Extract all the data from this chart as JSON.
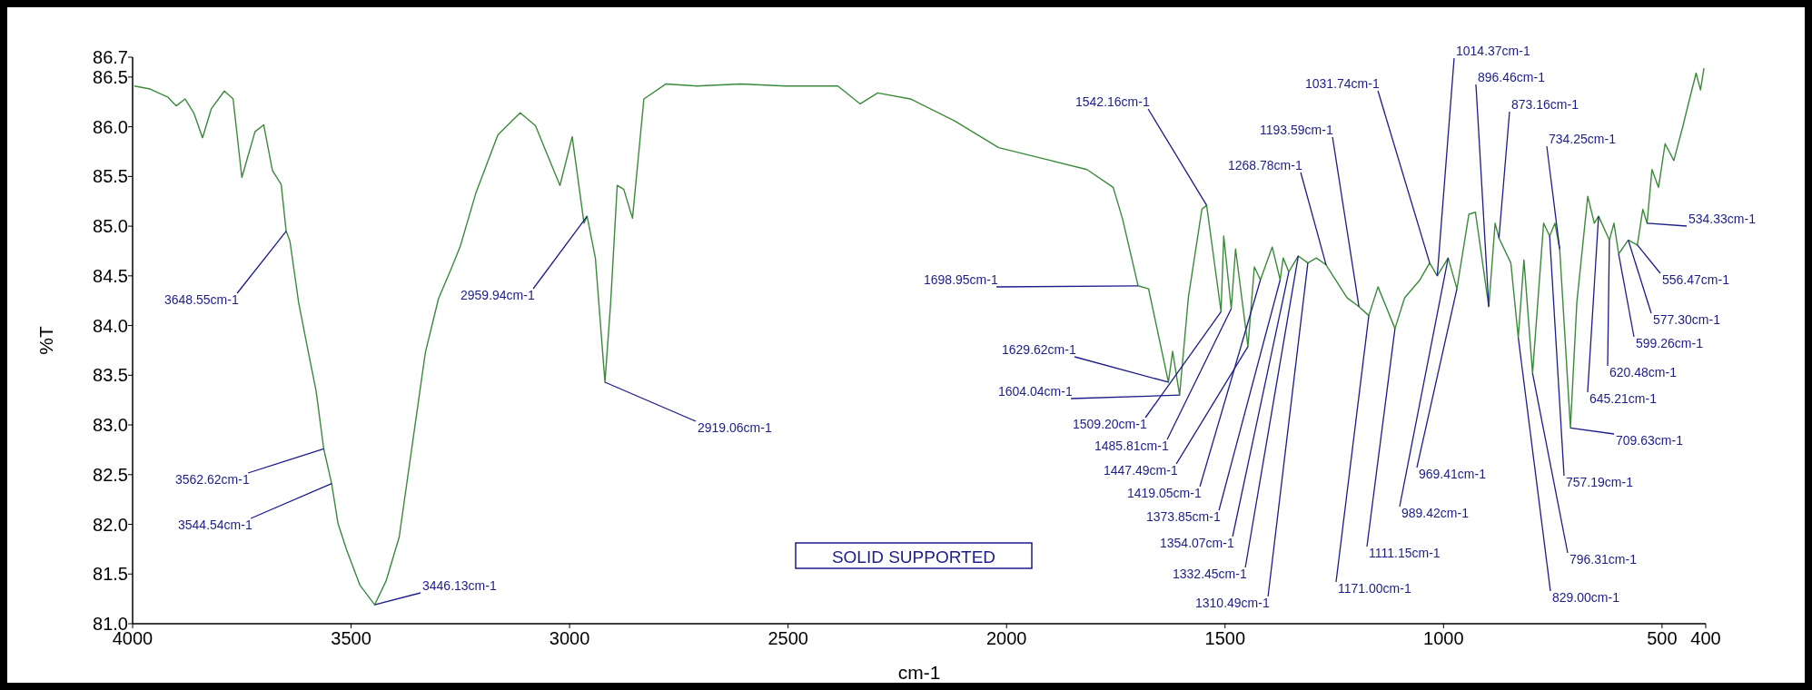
{
  "chart_data": {
    "type": "line",
    "xlabel": "cm-1",
    "ylabel": "%T",
    "xlim": [
      4000,
      400
    ],
    "xticks": [
      4000,
      3500,
      3000,
      2500,
      2000,
      1500,
      1000,
      500,
      400
    ],
    "ylim": [
      81.0,
      86.7
    ],
    "yticks": [
      {
        "value": 81.0,
        "label": "81.0"
      },
      {
        "value": 81.5,
        "label": "81.5"
      },
      {
        "value": 82.0,
        "label": "82.0"
      },
      {
        "value": 82.5,
        "label": "82.5"
      },
      {
        "value": 83.0,
        "label": "83.0"
      },
      {
        "value": 83.5,
        "label": "83.5"
      },
      {
        "value": 84.0,
        "label": "84.0"
      },
      {
        "value": 84.5,
        "label": "84.5"
      },
      {
        "value": 85.0,
        "label": "85.0"
      },
      {
        "value": 85.5,
        "label": "85.5"
      },
      {
        "value": 86.0,
        "label": "86.0"
      },
      {
        "value": 86.5,
        "label": "86.5"
      },
      {
        "value": 86.7,
        "label": "86.7"
      }
    ],
    "grid": false,
    "marker": "none",
    "line_style": "solid",
    "series": [
      {
        "color": "#3b8a3b",
        "x": [
          3996,
          3960,
          3920,
          3900,
          3880,
          3860,
          3840,
          3820,
          3790,
          3770,
          3750,
          3720,
          3700,
          3680,
          3660,
          3648.55,
          3640,
          3620,
          3600,
          3580,
          3562.62,
          3544.54,
          3530,
          3510,
          3480,
          3446.13,
          3420,
          3390,
          3360,
          3330,
          3300,
          3270,
          3250,
          3214,
          3164,
          3113,
          3078,
          3053,
          3022,
          2994,
          2967,
          2959.94,
          2941,
          2919.06,
          2906,
          2891,
          2876,
          2856,
          2830,
          2780,
          2709,
          2608,
          2507,
          2386,
          2335,
          2295,
          2220,
          2119,
          2018,
          1917,
          1816,
          1756,
          1735,
          1698.95,
          1675,
          1629.62,
          1620,
          1604.04,
          1584,
          1553,
          1542.16,
          1509.2,
          1503,
          1485.81,
          1476,
          1447.49,
          1433,
          1419.05,
          1392,
          1373.85,
          1367,
          1354.07,
          1332.45,
          1310.49,
          1291,
          1268.78,
          1221,
          1193.59,
          1171.0,
          1150,
          1111.15,
          1089,
          1054,
          1031.74,
          1014.37,
          989.42,
          969.41,
          942,
          927,
          896.46,
          882,
          873.16,
          846,
          829.0,
          816,
          796.31,
          771,
          757.19,
          745,
          734.25,
          709.63,
          695,
          670,
          655,
          645.21,
          620.48,
          610,
          599.26,
          577.3,
          556.47,
          544,
          534.33,
          523,
          508,
          493,
          473,
          452,
          437,
          422,
          412,
          404
        ],
        "values": [
          86.41,
          86.38,
          86.3,
          86.21,
          86.28,
          86.14,
          85.89,
          86.18,
          86.36,
          86.28,
          85.49,
          85.95,
          86.02,
          85.56,
          85.42,
          84.95,
          84.85,
          84.23,
          83.78,
          83.34,
          82.76,
          82.41,
          82.01,
          81.74,
          81.39,
          81.19,
          81.43,
          81.87,
          82.8,
          83.73,
          84.27,
          84.58,
          84.8,
          85.34,
          85.92,
          86.14,
          86.01,
          85.74,
          85.41,
          85.9,
          85.03,
          85.1,
          84.68,
          83.43,
          84.23,
          85.41,
          85.37,
          85.08,
          86.28,
          86.43,
          86.41,
          86.43,
          86.41,
          86.41,
          86.23,
          86.34,
          86.28,
          86.06,
          85.79,
          85.68,
          85.57,
          85.39,
          85.08,
          84.4,
          84.37,
          83.43,
          83.74,
          83.3,
          84.28,
          85.17,
          85.21,
          84.14,
          84.9,
          84.17,
          84.77,
          83.79,
          84.59,
          84.46,
          84.79,
          84.46,
          84.68,
          84.54,
          84.7,
          84.63,
          84.68,
          84.61,
          84.28,
          84.19,
          84.1,
          84.39,
          83.97,
          84.28,
          84.46,
          84.63,
          84.5,
          84.68,
          84.37,
          85.12,
          85.14,
          84.19,
          85.03,
          84.88,
          84.63,
          83.88,
          84.66,
          83.52,
          85.03,
          84.9,
          85.03,
          84.77,
          82.97,
          84.23,
          85.3,
          85.03,
          85.1,
          84.86,
          85.03,
          84.72,
          84.86,
          84.81,
          85.17,
          85.03,
          85.57,
          85.39,
          85.83,
          85.66,
          86.01,
          86.28,
          86.54,
          86.37,
          86.59
        ]
      }
    ],
    "annotations": [
      {
        "text": "3648.55cm-1",
        "x": 3648.55,
        "y": 84.95
      },
      {
        "text": "3562.62cm-1",
        "x": 3562.62,
        "y": 82.76
      },
      {
        "text": "3544.54cm-1",
        "x": 3544.54,
        "y": 82.41
      },
      {
        "text": "3446.13cm-1",
        "x": 3446.13,
        "y": 81.19
      },
      {
        "text": "2959.94cm-1",
        "x": 2959.94,
        "y": 85.1
      },
      {
        "text": "2919.06cm-1",
        "x": 2919.06,
        "y": 83.43
      },
      {
        "text": "1542.16cm-1",
        "x": 1542.16,
        "y": 85.21
      },
      {
        "text": "1698.95cm-1",
        "x": 1698.95,
        "y": 84.4
      },
      {
        "text": "1629.62cm-1",
        "x": 1629.62,
        "y": 83.43
      },
      {
        "text": "1604.04cm-1",
        "x": 1604.04,
        "y": 83.3
      },
      {
        "text": "1509.20cm-1",
        "x": 1509.2,
        "y": 84.14
      },
      {
        "text": "1485.81cm-1",
        "x": 1485.81,
        "y": 84.17
      },
      {
        "text": "1447.49cm-1",
        "x": 1447.49,
        "y": 83.79
      },
      {
        "text": "1419.05cm-1",
        "x": 1419.05,
        "y": 84.46
      },
      {
        "text": "1373.85cm-1",
        "x": 1373.85,
        "y": 84.46
      },
      {
        "text": "1354.07cm-1",
        "x": 1354.07,
        "y": 84.54
      },
      {
        "text": "1332.45cm-1",
        "x": 1332.45,
        "y": 84.7
      },
      {
        "text": "1310.49cm-1",
        "x": 1310.49,
        "y": 84.63
      },
      {
        "text": "1268.78cm-1",
        "x": 1268.78,
        "y": 84.61
      },
      {
        "text": "1193.59cm-1",
        "x": 1193.59,
        "y": 84.19
      },
      {
        "text": "1171.00cm-1",
        "x": 1171.0,
        "y": 84.1
      },
      {
        "text": "1031.74cm-1",
        "x": 1031.74,
        "y": 84.63
      },
      {
        "text": "1111.15cm-1",
        "x": 1111.15,
        "y": 83.97
      },
      {
        "text": "1014.37cm-1",
        "x": 1014.37,
        "y": 84.5
      },
      {
        "text": "969.41cm-1",
        "x": 969.41,
        "y": 84.37
      },
      {
        "text": "989.42cm-1",
        "x": 989.42,
        "y": 84.68
      },
      {
        "text": "896.46cm-1",
        "x": 896.46,
        "y": 84.19
      },
      {
        "text": "873.16cm-1",
        "x": 873.16,
        "y": 84.88
      },
      {
        "text": "734.25cm-1",
        "x": 734.25,
        "y": 84.77
      },
      {
        "text": "829.00cm-1",
        "x": 829.0,
        "y": 83.88
      },
      {
        "text": "796.31cm-1",
        "x": 796.31,
        "y": 83.52
      },
      {
        "text": "757.19cm-1",
        "x": 757.19,
        "y": 84.9
      },
      {
        "text": "709.63cm-1",
        "x": 709.63,
        "y": 82.97
      },
      {
        "text": "645.21cm-1",
        "x": 645.21,
        "y": 85.1
      },
      {
        "text": "620.48cm-1",
        "x": 620.48,
        "y": 84.86
      },
      {
        "text": "599.26cm-1",
        "x": 599.26,
        "y": 84.72
      },
      {
        "text": "577.30cm-1",
        "x": 577.3,
        "y": 84.86
      },
      {
        "text": "556.47cm-1",
        "x": 556.47,
        "y": 84.81
      },
      {
        "text": "534.33cm-1",
        "x": 534.33,
        "y": 85.03
      },
      "SOLID SUPPORTED"
    ]
  }
}
